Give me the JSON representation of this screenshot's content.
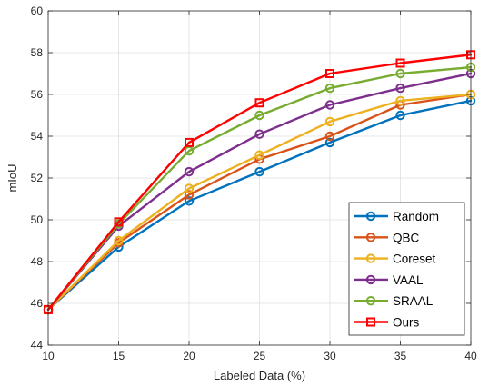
{
  "chart_data": {
    "type": "line",
    "xlabel": "Labeled Data (%)",
    "ylabel": "mIoU",
    "x": [
      10,
      15,
      20,
      25,
      30,
      35,
      40
    ],
    "xlim": [
      10,
      40
    ],
    "ylim": [
      44,
      60
    ],
    "xticks": [
      10,
      15,
      20,
      25,
      30,
      35,
      40
    ],
    "yticks": [
      44,
      46,
      48,
      50,
      52,
      54,
      56,
      58,
      60
    ],
    "grid": true,
    "legend_position": "bottom-right",
    "series": [
      {
        "name": "Random",
        "color": "#0072BD",
        "marker": "circle",
        "values": [
          45.7,
          48.7,
          50.9,
          52.3,
          53.7,
          55.0,
          55.7
        ]
      },
      {
        "name": "QBC",
        "color": "#D95319",
        "marker": "circle",
        "values": [
          45.7,
          48.9,
          51.2,
          52.9,
          54.0,
          55.5,
          56.0
        ]
      },
      {
        "name": "Coreset",
        "color": "#EDB120",
        "marker": "circle",
        "values": [
          45.7,
          49.0,
          51.5,
          53.1,
          54.7,
          55.7,
          56.0
        ]
      },
      {
        "name": "VAAL",
        "color": "#7E2F8E",
        "marker": "circle",
        "values": [
          45.7,
          49.7,
          52.3,
          54.1,
          55.5,
          56.3,
          57.0
        ]
      },
      {
        "name": "SRAAL",
        "color": "#77AC30",
        "marker": "circle",
        "values": [
          45.7,
          49.8,
          53.3,
          55.0,
          56.3,
          57.0,
          57.3
        ]
      },
      {
        "name": "Ours",
        "color": "#FF0000",
        "marker": "square",
        "values": [
          45.7,
          49.9,
          53.7,
          55.6,
          57.0,
          57.5,
          57.9
        ]
      }
    ]
  }
}
